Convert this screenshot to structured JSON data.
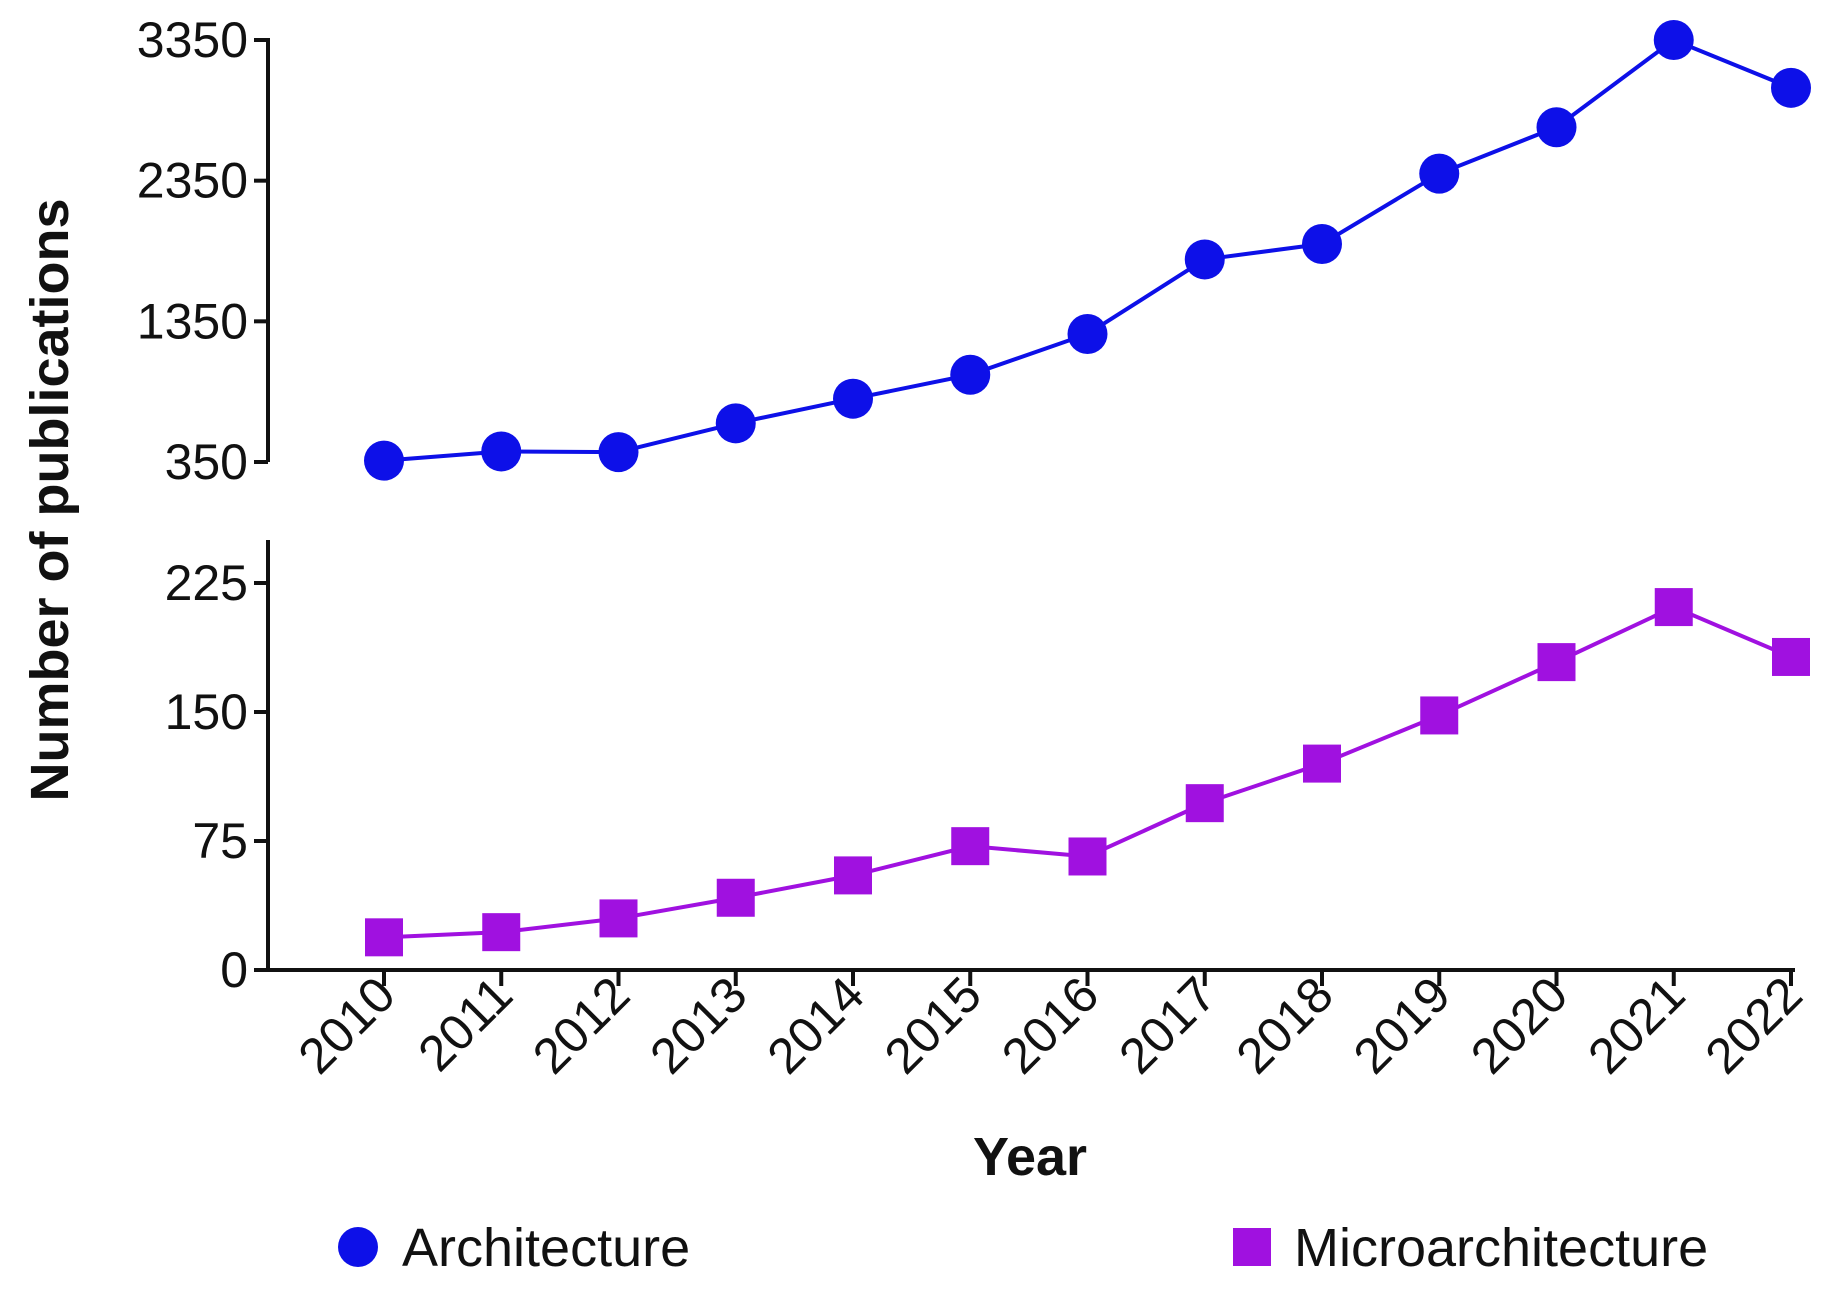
{
  "colors": {
    "architecture": "#0d10e8",
    "microarchitecture": "#a011e0",
    "axis": "#111111"
  },
  "chart_data": {
    "type": "line",
    "title": "",
    "xlabel": "Year",
    "ylabel": "Number of publications",
    "categories": [
      "2010",
      "2011",
      "2012",
      "2013",
      "2014",
      "2015",
      "2016",
      "2017",
      "2018",
      "2019",
      "2020",
      "2021",
      "2022"
    ],
    "legend_placement": "bottom",
    "grid": false,
    "panels": [
      {
        "name": "upper",
        "ylim": [
          350,
          3350
        ],
        "yticks": [
          "3350",
          "2350",
          "1350",
          "350"
        ],
        "series": [
          {
            "name": "Architecture",
            "marker": "circle",
            "values": [
              360,
              425,
              420,
              625,
              800,
              970,
              1260,
              1790,
              1900,
              2400,
              2730,
              3350,
              3010
            ]
          }
        ]
      },
      {
        "name": "lower",
        "ylim": [
          0,
          250
        ],
        "yticks": [
          "225",
          "150",
          "75",
          "0"
        ],
        "series": [
          {
            "name": "Microarchitecture",
            "marker": "square",
            "values": [
              19,
              22,
              30,
              42,
              55,
              72,
              66,
              97,
              120,
              148,
              179,
              211,
              182
            ]
          }
        ]
      }
    ]
  },
  "legend": [
    {
      "label": "Architecture"
    },
    {
      "label": "Microarchitecture"
    }
  ]
}
